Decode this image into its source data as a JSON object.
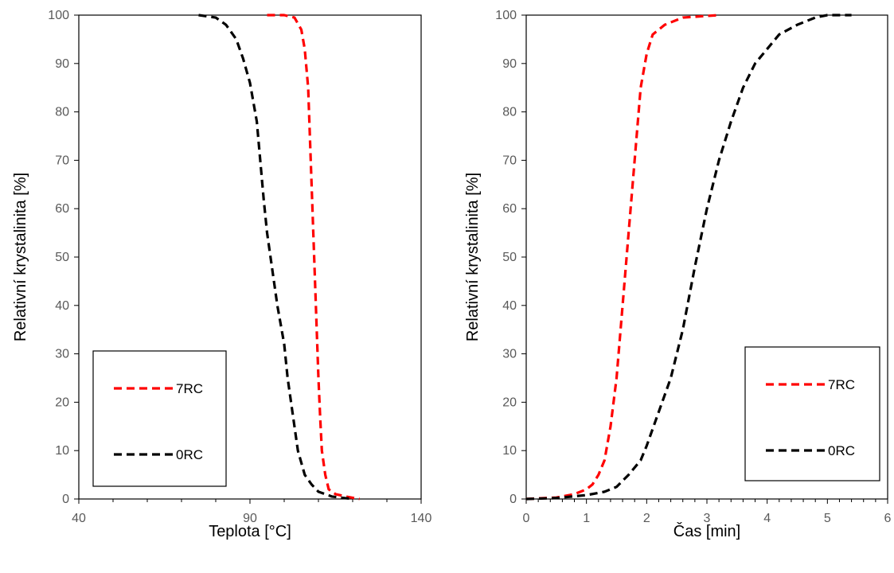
{
  "chart_data": [
    {
      "type": "line",
      "xlabel": "Teplota [°C]",
      "ylabel": "Relativní krystalinita [%]",
      "xlim": [
        40,
        140
      ],
      "ylim": [
        0,
        100
      ],
      "x_ticks": [
        40,
        90,
        140
      ],
      "y_ticks": [
        0,
        10,
        20,
        30,
        40,
        50,
        60,
        70,
        80,
        90,
        100
      ],
      "grid": false,
      "legend_position": "bottom-left",
      "series": [
        {
          "name": "7RC",
          "color": "#ff0000",
          "dash": "dashed",
          "points": [
            [
              95,
              100
            ],
            [
              100,
              100
            ],
            [
              103,
              99.5
            ],
            [
              105,
              97
            ],
            [
              106,
              93
            ],
            [
              107,
              85
            ],
            [
              107.5,
              75
            ],
            [
              108,
              65
            ],
            [
              108.5,
              55
            ],
            [
              109,
              45
            ],
            [
              109.5,
              35
            ],
            [
              110,
              25
            ],
            [
              110.5,
              17
            ],
            [
              111,
              10
            ],
            [
              112,
              5
            ],
            [
              113,
              2
            ],
            [
              115,
              1
            ],
            [
              118,
              0.5
            ],
            [
              122,
              0
            ]
          ]
        },
        {
          "name": "0RC",
          "color": "#000000",
          "dash": "dashed",
          "points": [
            [
              75,
              100
            ],
            [
              80,
              99.5
            ],
            [
              83,
              98
            ],
            [
              86,
              95
            ],
            [
              88,
              91
            ],
            [
              90,
              86
            ],
            [
              92,
              78
            ],
            [
              93,
              70
            ],
            [
              94,
              62
            ],
            [
              95,
              55
            ],
            [
              96,
              50
            ],
            [
              97,
              45
            ],
            [
              98,
              40
            ],
            [
              100,
              32
            ],
            [
              101,
              25
            ],
            [
              103,
              15
            ],
            [
              104,
              10
            ],
            [
              106,
              5
            ],
            [
              108,
              3
            ],
            [
              110,
              1.5
            ],
            [
              114,
              0.5
            ],
            [
              120,
              0
            ]
          ]
        }
      ]
    },
    {
      "type": "line",
      "xlabel": "Čas [min]",
      "ylabel": "Relativní krystalinita [%]",
      "xlim": [
        0,
        6
      ],
      "ylim": [
        0,
        100
      ],
      "x_ticks": [
        0,
        1,
        2,
        3,
        4,
        5,
        6
      ],
      "y_ticks": [
        0,
        10,
        20,
        30,
        40,
        50,
        60,
        70,
        80,
        90,
        100
      ],
      "grid": false,
      "legend_position": "bottom-right",
      "series": [
        {
          "name": "7RC",
          "color": "#ff0000",
          "dash": "dashed",
          "points": [
            [
              0,
              0
            ],
            [
              0.5,
              0.3
            ],
            [
              0.8,
              1
            ],
            [
              1,
              2
            ],
            [
              1.1,
              3
            ],
            [
              1.2,
              5
            ],
            [
              1.3,
              8
            ],
            [
              1.4,
              15
            ],
            [
              1.5,
              25
            ],
            [
              1.6,
              40
            ],
            [
              1.7,
              55
            ],
            [
              1.8,
              70
            ],
            [
              1.9,
              85
            ],
            [
              2,
              92
            ],
            [
              2.1,
              96
            ],
            [
              2.3,
              98
            ],
            [
              2.6,
              99.5
            ],
            [
              3.2,
              100
            ]
          ]
        },
        {
          "name": "0RC",
          "color": "#000000",
          "dash": "dashed",
          "points": [
            [
              0,
              0
            ],
            [
              0.5,
              0.2
            ],
            [
              1,
              0.8
            ],
            [
              1.3,
              1.5
            ],
            [
              1.5,
              2.5
            ],
            [
              1.7,
              5
            ],
            [
              1.9,
              8
            ],
            [
              2,
              11
            ],
            [
              2.2,
              18
            ],
            [
              2.4,
              25
            ],
            [
              2.6,
              35
            ],
            [
              2.8,
              48
            ],
            [
              3,
              60
            ],
            [
              3.2,
              70
            ],
            [
              3.4,
              78
            ],
            [
              3.6,
              85
            ],
            [
              3.8,
              90
            ],
            [
              4,
              93
            ],
            [
              4.2,
              96
            ],
            [
              4.5,
              98
            ],
            [
              4.8,
              99.5
            ],
            [
              5,
              100
            ],
            [
              5.4,
              100
            ]
          ]
        }
      ]
    }
  ]
}
